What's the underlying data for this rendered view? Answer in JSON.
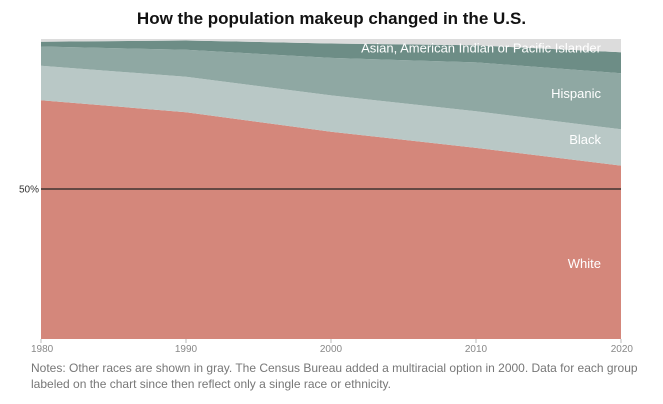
{
  "chart_data": {
    "type": "area",
    "stacked": true,
    "normalized": true,
    "title": "How the population makeup changed in the U.S.",
    "x": [
      1980,
      1990,
      2000,
      2010,
      2020
    ],
    "x_ticks": [
      "1980",
      "1990",
      "2000",
      "2010",
      "2020"
    ],
    "ylim": [
      0,
      100
    ],
    "reference_line": {
      "value": 50,
      "label": "50%"
    },
    "series": [
      {
        "name": "White",
        "values": [
          79.6,
          75.6,
          69.1,
          63.7,
          57.8
        ],
        "color": "#d4877b"
      },
      {
        "name": "Black",
        "values": [
          11.5,
          11.8,
          12.1,
          12.2,
          12.1
        ],
        "color": "#b9c8c6"
      },
      {
        "name": "Hispanic",
        "values": [
          6.4,
          9.0,
          12.5,
          16.3,
          18.7
        ],
        "color": "#8fa8a3"
      },
      {
        "name": "Asian, American Indian or Pacific Islander",
        "values": [
          1.6,
          3.1,
          4.8,
          5.7,
          7.0
        ],
        "color": "#6d8d86"
      },
      {
        "name": "Other",
        "values": [
          0.9,
          0.5,
          1.5,
          2.1,
          4.4
        ],
        "color": "#dcdcdc"
      }
    ],
    "notes": "Notes: Other races are shown in gray. The Census Bureau added a multiracial option in 2000. Data for each group labeled on the chart since then reflect only a single race or ethnicity."
  }
}
